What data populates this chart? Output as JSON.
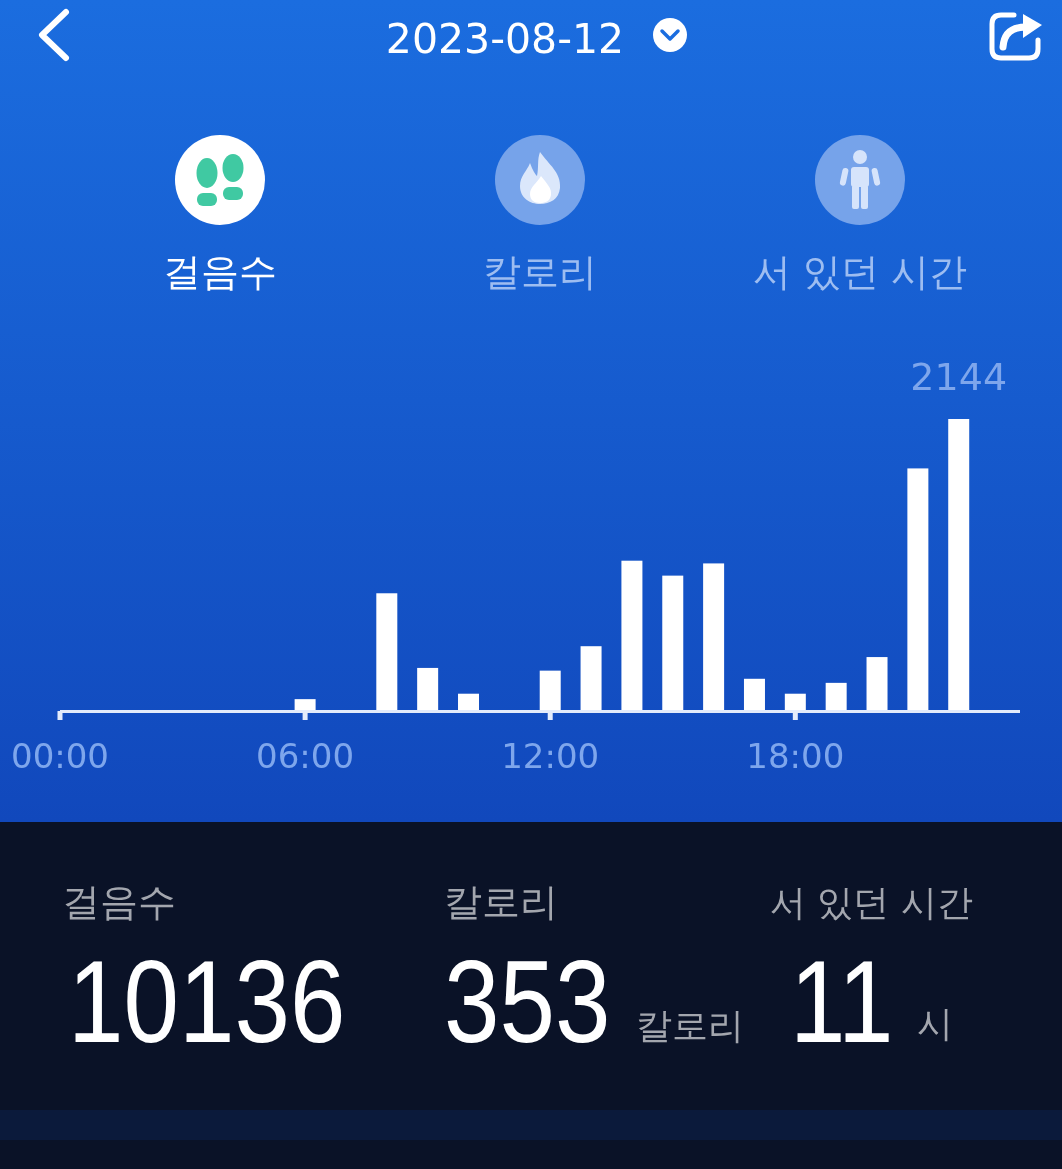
{
  "chart_data": {
    "type": "bar",
    "title": "2023-08-12",
    "x": [
      6,
      8,
      9,
      10,
      12,
      13,
      14,
      15,
      16,
      17,
      18,
      19,
      20,
      21,
      22
    ],
    "values": [
      80,
      860,
      310,
      120,
      290,
      470,
      1100,
      990,
      1080,
      230,
      120,
      200,
      390,
      1780,
      2144
    ],
    "color": "#ffffff",
    "value_labels": [
      null,
      null,
      null,
      null,
      null,
      null,
      null,
      null,
      null,
      null,
      null,
      null,
      null,
      null,
      "2144"
    ],
    "xlim": [
      0,
      23.5
    ],
    "xticks": [
      {
        "value": 0,
        "label": "00:00"
      },
      {
        "value": 6,
        "label": "06:00"
      },
      {
        "value": 12,
        "label": "12:00"
      },
      {
        "value": 18,
        "label": "18:00"
      }
    ],
    "tick_labels": "x",
    "annotations": [
      "걸음수",
      "칼로리",
      "서 있던 시간",
      "걸음수",
      "10136",
      "칼로리",
      "353",
      "칼로리",
      "서 있던 시간",
      "11",
      "시"
    ]
  }
}
